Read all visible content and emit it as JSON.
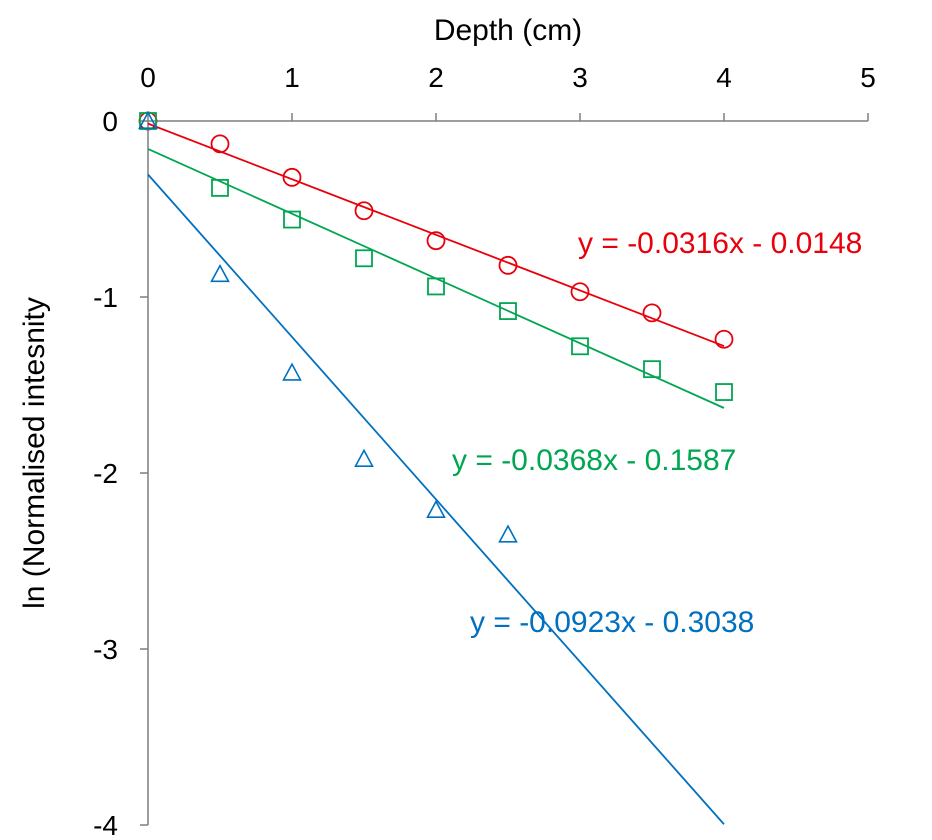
{
  "chart_data": {
    "type": "scatter",
    "xlabel": "Depth (cm)",
    "ylabel": "ln (Normalised intesnity",
    "xlim": [
      0,
      5
    ],
    "ylim": [
      -4,
      0
    ],
    "x_ticks": [
      "0",
      "1",
      "2",
      "3",
      "4",
      "5"
    ],
    "y_ticks": [
      "0",
      "-1",
      "-2",
      "-3",
      "-4"
    ],
    "x_axis_position": "top",
    "grid": false,
    "legend": "none",
    "series": [
      {
        "marker": "circle",
        "color": "#e8000b",
        "x": [
          0,
          0.5,
          1,
          1.5,
          2,
          2.5,
          3,
          3.5,
          4
        ],
        "y": [
          0,
          -0.13,
          -0.32,
          -0.51,
          -0.68,
          -0.82,
          -0.97,
          -1.09,
          -1.24
        ],
        "trendline": {
          "slope": -0.0316,
          "intercept": -0.0148,
          "x_range": [
            0,
            4
          ],
          "equation": "y = -0.0316x - 0.0148"
        }
      },
      {
        "marker": "square",
        "color": "#00a651",
        "x": [
          0,
          0.5,
          1,
          1.5,
          2,
          2.5,
          3,
          3.5,
          4
        ],
        "y": [
          0,
          -0.38,
          -0.56,
          -0.78,
          -0.94,
          -1.08,
          -1.28,
          -1.41,
          -1.54
        ],
        "trendline": {
          "slope": -0.0368,
          "intercept": -0.1587,
          "x_range": [
            0,
            4
          ],
          "equation": "y = -0.0368x - 0.1587"
        }
      },
      {
        "marker": "triangle",
        "color": "#0070c0",
        "x": [
          0,
          0.5,
          1,
          1.5,
          2,
          2.5
        ],
        "y": [
          0,
          -0.87,
          -1.43,
          -1.92,
          -2.21,
          -2.35
        ],
        "trendline": {
          "slope": -0.0923,
          "intercept": -0.3038,
          "x_range": [
            0,
            4
          ],
          "equation": "y = -0.0923x - 0.3038"
        }
      }
    ]
  }
}
